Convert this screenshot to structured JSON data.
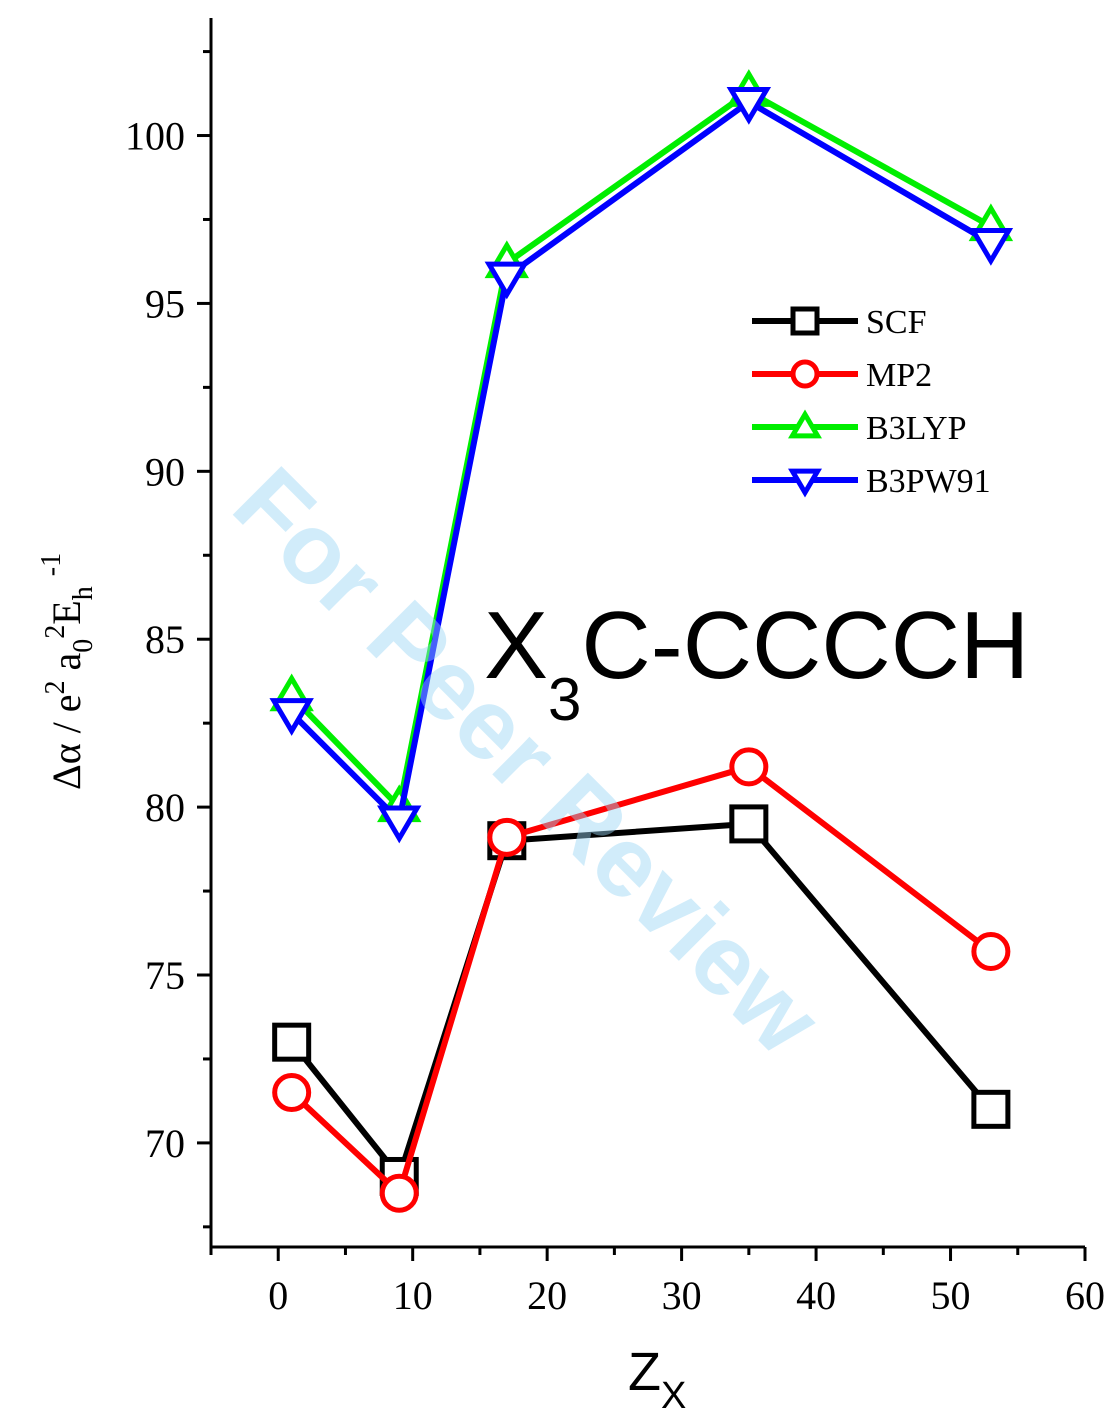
{
  "chart_data": {
    "type": "line",
    "x": [
      1,
      9,
      17,
      35,
      53
    ],
    "series": [
      {
        "name": "SCF",
        "values": [
          73.0,
          69.0,
          79.0,
          79.5,
          71.0
        ],
        "color": "#000000",
        "marker": "square"
      },
      {
        "name": "MP2",
        "values": [
          71.5,
          68.5,
          79.1,
          81.2,
          75.7
        ],
        "color": "#ff0000",
        "marker": "circle"
      },
      {
        "name": "B3LYP",
        "values": [
          83.3,
          80.0,
          96.2,
          101.3,
          97.3
        ],
        "color": "#00ee00",
        "marker": "triangle-up"
      },
      {
        "name": "B3PW91",
        "values": [
          82.8,
          79.6,
          95.8,
          101.0,
          96.8
        ],
        "color": "#0000ff",
        "marker": "triangle-down"
      }
    ],
    "xlabel": {
      "main": "Z",
      "sub": "X"
    },
    "ylabel": {
      "parts": [
        "Δα / e",
        "2",
        " a",
        "0",
        "2",
        "E",
        "h",
        "-1"
      ]
    },
    "xlim": [
      -5,
      60
    ],
    "ylim": [
      66.9,
      103.5
    ],
    "xticks": [
      0,
      10,
      20,
      30,
      40,
      50,
      60
    ],
    "xtick_labels": [
      "0",
      "10",
      "20",
      "30",
      "40",
      "50",
      "60"
    ],
    "yticks": [
      70,
      75,
      80,
      85,
      90,
      95,
      100
    ],
    "ytick_labels": [
      "70",
      "75",
      "80",
      "85",
      "90",
      "95",
      "100"
    ],
    "annotation": {
      "main": "X",
      "sub": "3",
      "rest": "C-CCCCH"
    },
    "legend_position": "upper-right",
    "grid": false,
    "watermark": "For Peer Review"
  }
}
